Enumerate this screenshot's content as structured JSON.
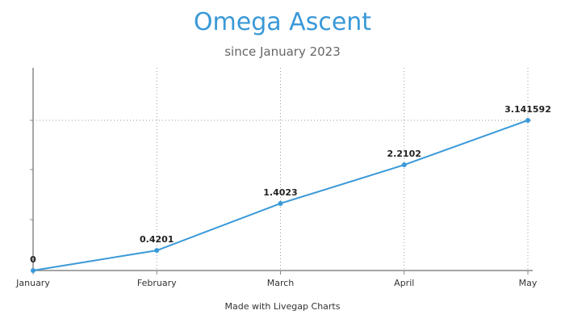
{
  "chart_data": {
    "type": "line",
    "title": "Omega Ascent",
    "subtitle": "since January 2023",
    "categories": [
      "January",
      "February",
      "March",
      "April",
      "May"
    ],
    "series": [
      {
        "values": [
          0,
          0.4201,
          1.4023,
          2.2102,
          3.141592
        ],
        "labels": [
          "0",
          "0.4201",
          "1.4023",
          "2.2102",
          "3.141592"
        ],
        "color": "#3a99d8"
      }
    ],
    "ylim": [
      0,
      3.14159
    ],
    "grid": "dotted vertical at categories, dotted horizontal at top",
    "legend": "none"
  },
  "footer": {
    "credit": "Made with Livegap Charts"
  }
}
